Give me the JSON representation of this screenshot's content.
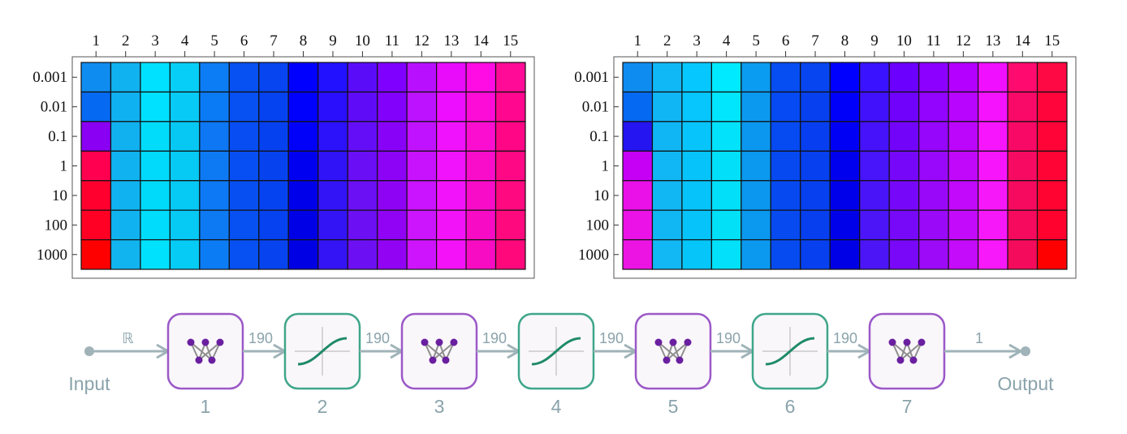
{
  "chart_data": [
    {
      "type": "heatmap",
      "x_ticks": [
        "1",
        "2",
        "3",
        "4",
        "5",
        "6",
        "7",
        "8",
        "9",
        "10",
        "11",
        "12",
        "13",
        "14",
        "15"
      ],
      "y_ticks": [
        "0.001",
        "0.01",
        "0.1",
        "1",
        "10",
        "100",
        "1000"
      ],
      "cell_colors": [
        [
          "#0f8cf0",
          "#10b2f0",
          "#00e1ff",
          "#06cef7",
          "#0c7df4",
          "#0751f2",
          "#0745f0",
          "#0000ff",
          "#2111ff",
          "#5a0cf9",
          "#8000ff",
          "#b810ff",
          "#e80cfb",
          "#ff0ce4",
          "#ff0b98"
        ],
        [
          "#0569f1",
          "#10b1f0",
          "#00e1ff",
          "#07cbf6",
          "#0a7af5",
          "#0750f2",
          "#0643f0",
          "#0000fd",
          "#2a0ffd",
          "#600bf7",
          "#8101fa",
          "#bc12ff",
          "#ee0eff",
          "#fd0cd7",
          "#ff078e"
        ],
        [
          "#8a00f3",
          "#11b0ef",
          "#01dcfb",
          "#06c8f3",
          "#0d77f4",
          "#074df1",
          "#0641f0",
          "#0101f9",
          "#2c11fb",
          "#640ef7",
          "#8902f8",
          "#c112ff",
          "#f012fd",
          "#fb0ed0",
          "#ff0687"
        ],
        [
          "#ff0050",
          "#10b2ef",
          "#01dafa",
          "#06c9f4",
          "#0d7af4",
          "#074ff2",
          "#0643ef",
          "#0000f1",
          "#3013f7",
          "#690ef5",
          "#8c03f6",
          "#c812fe",
          "#f113fb",
          "#f90dcb",
          "#ff0885"
        ],
        [
          "#ff002e",
          "#10b3ef",
          "#00dafa",
          "#06c9f4",
          "#0d79f4",
          "#074ff1",
          "#0643f0",
          "#0000ea",
          "#3214f6",
          "#6b0ff4",
          "#8f03f5",
          "#ca13fe",
          "#f313fa",
          "#f80cc7",
          "#ff0980"
        ],
        [
          "#ff0024",
          "#10b3ef",
          "#00dcfb",
          "#06c9f4",
          "#0d7af3",
          "#0750f2",
          "#0642ef",
          "#0000e6",
          "#3314f5",
          "#6c0ff3",
          "#9103f4",
          "#cc14fd",
          "#f313f9",
          "#f70bc5",
          "#ff097e"
        ],
        [
          "#ff0000",
          "#11b4ef",
          "#00e1fe",
          "#06cbf5",
          "#0c7cf4",
          "#0751f2",
          "#0744ef",
          "#0000e4",
          "#3414f4",
          "#6d0ff3",
          "#9203f4",
          "#cd14fd",
          "#f413f9",
          "#f70cc4",
          "#ff087c"
        ]
      ]
    },
    {
      "type": "heatmap",
      "x_ticks": [
        "1",
        "2",
        "3",
        "4",
        "5",
        "6",
        "7",
        "8",
        "9",
        "10",
        "11",
        "12",
        "13",
        "14",
        "15"
      ],
      "y_ticks": [
        "0.001",
        "0.01",
        "0.1",
        "1",
        "10",
        "100",
        "1000"
      ],
      "cell_colors": [
        [
          "#0f8cf0",
          "#10b8f5",
          "#06c8ff",
          "#00eaff",
          "#0a9cf0",
          "#064df2",
          "#0745f0",
          "#0000ff",
          "#3b12ff",
          "#6c00ff",
          "#8c00ff",
          "#b300ff",
          "#f10fff",
          "#ff0b70",
          "#ff0944"
        ],
        [
          "#0569f1",
          "#10b6f4",
          "#06c6fd",
          "#01e6fd",
          "#0a99ef",
          "#054af2",
          "#0741ef",
          "#0000fa",
          "#4211fc",
          "#7002fc",
          "#9204fd",
          "#b805fd",
          "#f513fd",
          "#fa0a68",
          "#ff053c"
        ],
        [
          "#2515f1",
          "#10b6f4",
          "#07c4fb",
          "#02e2fb",
          "#0b97ef",
          "#064af1",
          "#073ff0",
          "#0000f4",
          "#4612fa",
          "#7304fa",
          "#9506fb",
          "#bc06fc",
          "#f615fc",
          "#f80966",
          "#ff0537"
        ],
        [
          "#c600f5",
          "#11b7f4",
          "#06c3f9",
          "#02e0f9",
          "#0b98ef",
          "#0649f0",
          "#0740ef",
          "#0000ee",
          "#4814f9",
          "#7607f9",
          "#9908fa",
          "#c108fb",
          "#f716fb",
          "#f60a62",
          "#ff0434"
        ],
        [
          "#e910e8",
          "#11b7f3",
          "#06c3f9",
          "#02dff8",
          "#0b97ef",
          "#0649f0",
          "#0740ef",
          "#0000eb",
          "#4a14f8",
          "#7707f8",
          "#9a08f9",
          "#c209fb",
          "#f718fa",
          "#f50a5f",
          "#ff0430"
        ],
        [
          "#ea12e6",
          "#11b7f3",
          "#06c4f9",
          "#02e0f8",
          "#0b98ef",
          "#064af0",
          "#073fef",
          "#0000e9",
          "#4b15f7",
          "#7708f8",
          "#9b09f9",
          "#c30afa",
          "#f718fa",
          "#f50a5d",
          "#ff022d"
        ],
        [
          "#eb14e3",
          "#11b8f3",
          "#06c5f9",
          "#02e1f9",
          "#0b99ef",
          "#064bf0",
          "#0740ef",
          "#0000e6",
          "#4c15f6",
          "#7808f7",
          "#9c0af8",
          "#c40bfa",
          "#f719f9",
          "#f40b5c",
          "#ff0000"
        ]
      ]
    }
  ],
  "network": {
    "input_label": "Input",
    "output_label": "Output",
    "input_type": "ℝ",
    "layers": [
      {
        "index_label": "1",
        "kind": "linear",
        "out_dim": "190"
      },
      {
        "index_label": "2",
        "kind": "activation",
        "out_dim": "190"
      },
      {
        "index_label": "3",
        "kind": "linear",
        "out_dim": "190"
      },
      {
        "index_label": "4",
        "kind": "activation",
        "out_dim": "190"
      },
      {
        "index_label": "5",
        "kind": "linear",
        "out_dim": "190"
      },
      {
        "index_label": "6",
        "kind": "activation",
        "out_dim": "190"
      },
      {
        "index_label": "7",
        "kind": "linear",
        "out_dim": "1"
      }
    ],
    "colors": {
      "linear_border": "#9b59c7",
      "linear_node": "#6a1fa0",
      "activation_border": "#3fa68a",
      "activation_curve": "#1f8a6a",
      "wire": "#9fb3b8",
      "box_fill": "#faf7fb"
    }
  }
}
